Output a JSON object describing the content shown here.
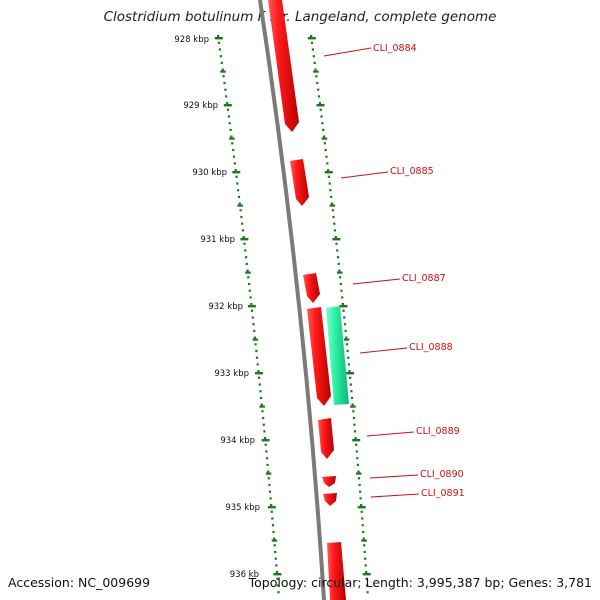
{
  "title": "Clostridium botulinum F str. Langeland, complete genome",
  "accession": "Accession: NC_009699",
  "summary": "Topology: circular; Length: 3,995,387 bp; Genes: 3,781",
  "colors": {
    "backbone": "#808080",
    "gene_forward": "#ff0000",
    "gene_reverse": "#33f0a8",
    "tick": "#1a7a1a",
    "label": "#d01010"
  },
  "kbp_labels": [
    "928 kbp",
    "929 kbp",
    "930 kbp",
    "931 kbp",
    "932 kbp",
    "933 kbp",
    "934 kbp",
    "935 kbp",
    "936 kb"
  ],
  "gene_labels": [
    "CLI_0884",
    "CLI_0885",
    "CLI_0887",
    "CLI_0888",
    "CLI_0889",
    "CLI_0890",
    "CLI_0891"
  ]
}
